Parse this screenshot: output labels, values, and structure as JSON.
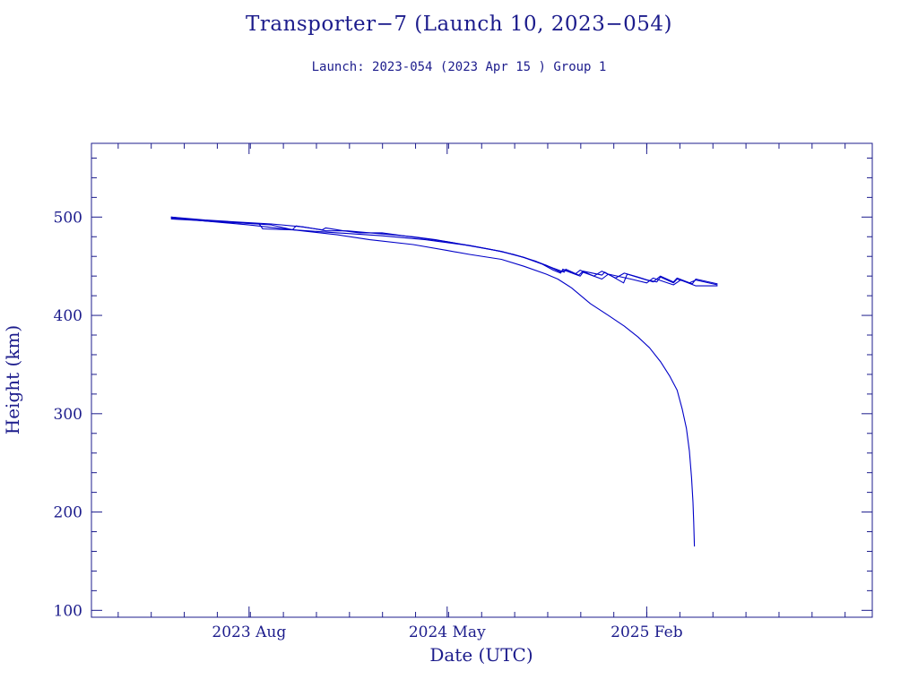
{
  "chart_data": {
    "type": "line",
    "title": "Transporter−7 (Launch 10, 2023−054)",
    "subtitle": "Launch: 2023-054  (2023 Apr 15 )  Group 1",
    "xlabel": "Date (UTC)",
    "ylabel": "Height (km)",
    "xlim": [
      "2022-12-26",
      "2025-12-10"
    ],
    "ylim": [
      93,
      575
    ],
    "x_ticks": [
      {
        "date": "2023-08-01",
        "label": "2023 Aug"
      },
      {
        "date": "2024-05-01",
        "label": "2024 May"
      },
      {
        "date": "2025-02-01",
        "label": "2025 Feb"
      }
    ],
    "y_ticks": [
      100,
      200,
      300,
      400,
      500
    ],
    "grid": false,
    "colors": {
      "series": "#0000c8",
      "frame": "#1c1c8c",
      "text": "#1c1c8c"
    },
    "series": [
      {
        "points": [
          [
            "2023-04-15",
            500
          ],
          [
            "2023-06-01",
            496
          ],
          [
            "2023-08-01",
            492
          ],
          [
            "2023-10-01",
            487
          ],
          [
            "2023-12-01",
            482
          ],
          [
            "2024-01-15",
            477
          ],
          [
            "2024-03-15",
            472
          ],
          [
            "2024-05-01",
            466
          ],
          [
            "2024-06-01",
            462
          ],
          [
            "2024-07-15",
            457
          ],
          [
            "2024-08-15",
            450
          ],
          [
            "2024-09-15",
            442
          ],
          [
            "2024-10-01",
            437
          ],
          [
            "2024-10-20",
            428
          ],
          [
            "2024-11-15",
            412
          ],
          [
            "2024-12-10",
            400
          ],
          [
            "2025-01-01",
            389
          ],
          [
            "2025-01-20",
            378
          ],
          [
            "2025-02-05",
            367
          ],
          [
            "2025-02-20",
            353
          ],
          [
            "2025-03-05",
            338
          ],
          [
            "2025-03-15",
            324
          ],
          [
            "2025-03-22",
            305
          ],
          [
            "2025-03-28",
            285
          ],
          [
            "2025-04-01",
            262
          ],
          [
            "2025-04-04",
            235
          ],
          [
            "2025-04-06",
            210
          ],
          [
            "2025-04-07",
            190
          ],
          [
            "2025-04-08",
            165
          ]
        ]
      },
      {
        "points": [
          [
            "2023-04-15",
            500
          ],
          [
            "2023-06-01",
            497
          ],
          [
            "2023-07-15",
            495
          ],
          [
            "2023-09-01",
            493
          ],
          [
            "2023-10-15",
            490
          ],
          [
            "2023-11-01",
            488
          ],
          [
            "2023-11-15",
            486
          ],
          [
            "2023-12-15",
            486
          ],
          [
            "2024-01-15",
            484
          ],
          [
            "2024-02-15",
            482
          ],
          [
            "2024-03-15",
            480
          ],
          [
            "2024-04-15",
            477
          ],
          [
            "2024-05-15",
            473
          ],
          [
            "2024-06-15",
            469
          ],
          [
            "2024-07-15",
            465
          ],
          [
            "2024-08-15",
            459
          ],
          [
            "2024-09-10",
            452
          ],
          [
            "2024-09-25",
            446
          ],
          [
            "2024-10-05",
            443
          ],
          [
            "2024-10-08",
            447
          ],
          [
            "2024-10-25",
            442
          ],
          [
            "2024-11-01",
            446
          ],
          [
            "2024-11-20",
            440
          ],
          [
            "2024-12-01",
            445
          ],
          [
            "2024-12-20",
            438
          ],
          [
            "2025-01-01",
            443
          ],
          [
            "2025-01-20",
            439
          ],
          [
            "2025-02-10",
            434
          ],
          [
            "2025-02-20",
            440
          ],
          [
            "2025-03-10",
            434
          ],
          [
            "2025-03-15",
            438
          ],
          [
            "2025-04-05",
            432
          ],
          [
            "2025-04-10",
            437
          ],
          [
            "2025-05-10",
            432
          ]
        ]
      },
      {
        "points": [
          [
            "2023-04-15",
            499
          ],
          [
            "2023-06-01",
            496
          ],
          [
            "2023-08-15",
            493
          ],
          [
            "2023-08-20",
            488
          ],
          [
            "2023-09-30",
            487
          ],
          [
            "2023-10-05",
            491
          ],
          [
            "2023-11-10",
            487
          ],
          [
            "2023-11-15",
            489
          ],
          [
            "2023-12-10",
            486
          ],
          [
            "2024-01-01",
            484
          ],
          [
            "2024-02-01",
            484
          ],
          [
            "2024-03-01",
            481
          ],
          [
            "2024-04-01",
            478
          ],
          [
            "2024-05-01",
            475
          ],
          [
            "2024-06-01",
            471
          ],
          [
            "2024-07-01",
            467
          ],
          [
            "2024-08-01",
            462
          ],
          [
            "2024-09-01",
            455
          ],
          [
            "2024-09-25",
            448
          ],
          [
            "2024-10-10",
            444
          ],
          [
            "2024-10-12",
            447
          ],
          [
            "2024-10-30",
            441
          ],
          [
            "2024-11-05",
            445
          ],
          [
            "2024-12-01",
            441
          ],
          [
            "2024-12-05",
            444
          ],
          [
            "2024-12-31",
            433
          ],
          [
            "2025-01-05",
            442
          ],
          [
            "2025-02-01",
            436
          ],
          [
            "2025-02-15",
            434
          ],
          [
            "2025-02-20",
            439
          ],
          [
            "2025-03-10",
            433
          ],
          [
            "2025-03-15",
            437
          ],
          [
            "2025-04-01",
            433
          ],
          [
            "2025-04-10",
            436
          ],
          [
            "2025-05-10",
            431
          ]
        ]
      },
      {
        "points": [
          [
            "2023-04-15",
            498
          ],
          [
            "2023-07-01",
            495
          ],
          [
            "2023-09-01",
            492
          ],
          [
            "2023-10-01",
            487
          ],
          [
            "2023-12-01",
            484
          ],
          [
            "2024-02-01",
            481
          ],
          [
            "2024-04-01",
            477
          ],
          [
            "2024-06-01",
            471
          ],
          [
            "2024-07-15",
            465
          ],
          [
            "2024-08-15",
            459
          ],
          [
            "2024-09-15",
            451
          ],
          [
            "2024-10-05",
            444
          ],
          [
            "2024-10-10",
            446
          ],
          [
            "2024-11-01",
            440
          ],
          [
            "2024-11-05",
            444
          ],
          [
            "2024-12-01",
            437
          ],
          [
            "2024-12-10",
            442
          ],
          [
            "2025-01-10",
            437
          ],
          [
            "2025-02-01",
            433
          ],
          [
            "2025-02-10",
            438
          ],
          [
            "2025-03-10",
            431
          ],
          [
            "2025-03-20",
            436
          ],
          [
            "2025-04-10",
            430
          ],
          [
            "2025-05-10",
            430
          ]
        ]
      }
    ]
  }
}
